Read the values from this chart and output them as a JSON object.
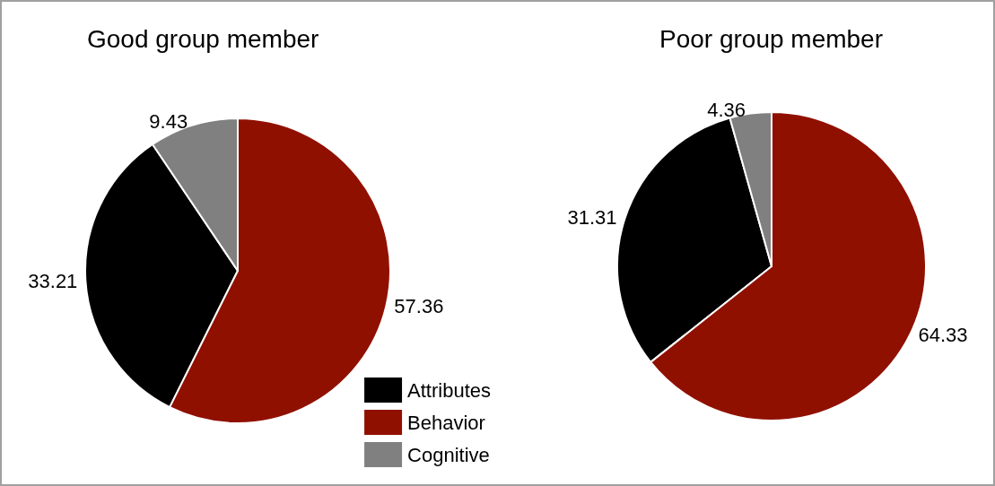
{
  "chart_data": [
    {
      "type": "pie",
      "title": "Good group member",
      "categories": [
        "Attributes",
        "Behavior",
        "Cognitive"
      ],
      "values": [
        33.21,
        57.36,
        9.43
      ],
      "colors": [
        "#000000",
        "#901000",
        "#808080"
      ],
      "data_labels": true,
      "legend": "bottom right"
    },
    {
      "type": "pie",
      "title": "Poor group member",
      "categories": [
        null,
        null,
        null
      ],
      "values": [
        31.31,
        64.33,
        4.36
      ],
      "colors": [
        "#000000",
        "#901000",
        "#808080"
      ],
      "data_labels": true,
      "legend": false
    }
  ]
}
